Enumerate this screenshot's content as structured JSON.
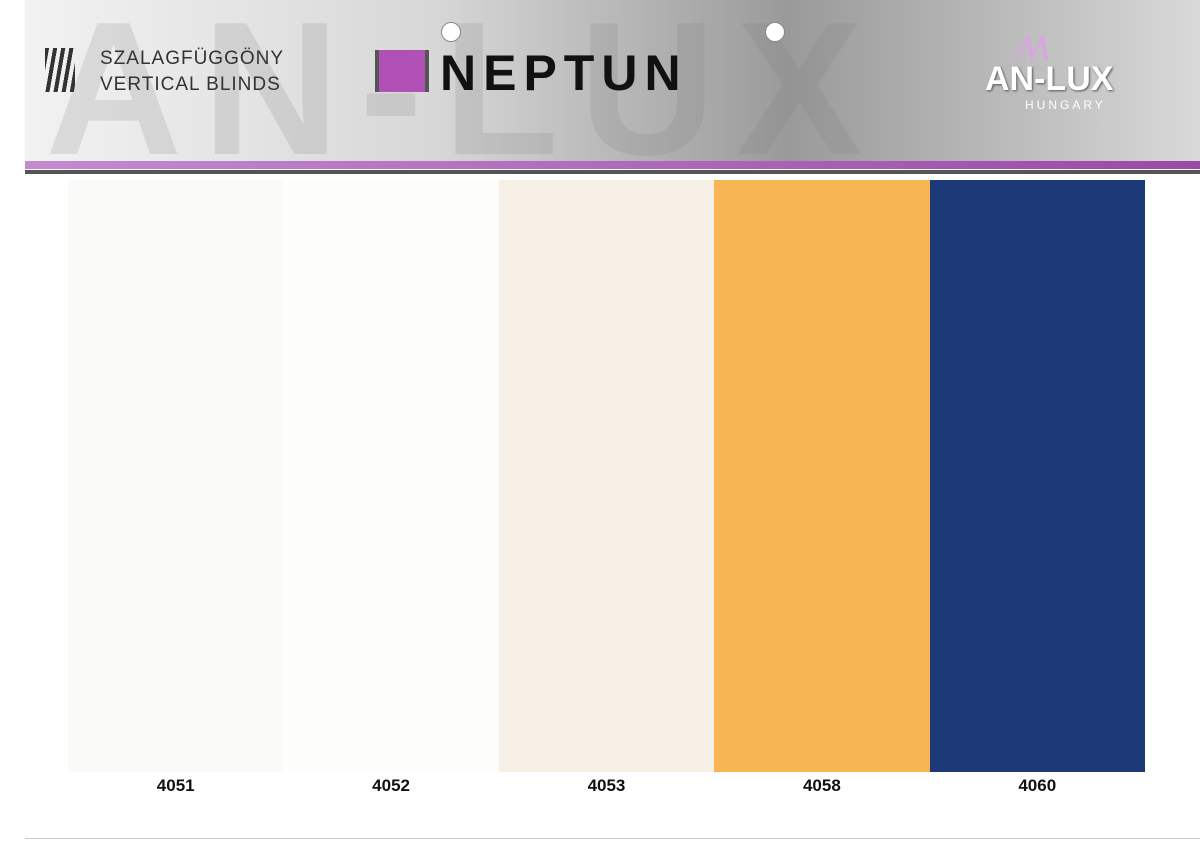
{
  "header": {
    "category_lines": [
      "SZALAGFÜGGÖNY",
      "VERTICAL BLINDS"
    ],
    "title": "NEPTUN",
    "watermark": "AN-LUX",
    "brand": "AN-LUX",
    "brand_sub": "HUNGARY"
  },
  "swatches": [
    {
      "code": "4051",
      "color": "#fafaf8"
    },
    {
      "code": "4052",
      "color": "#fdfdfb"
    },
    {
      "code": "4053",
      "color": "#f7f0e6"
    },
    {
      "code": "4058",
      "color": "#f7b553"
    },
    {
      "code": "4060",
      "color": "#1c3a78"
    }
  ]
}
